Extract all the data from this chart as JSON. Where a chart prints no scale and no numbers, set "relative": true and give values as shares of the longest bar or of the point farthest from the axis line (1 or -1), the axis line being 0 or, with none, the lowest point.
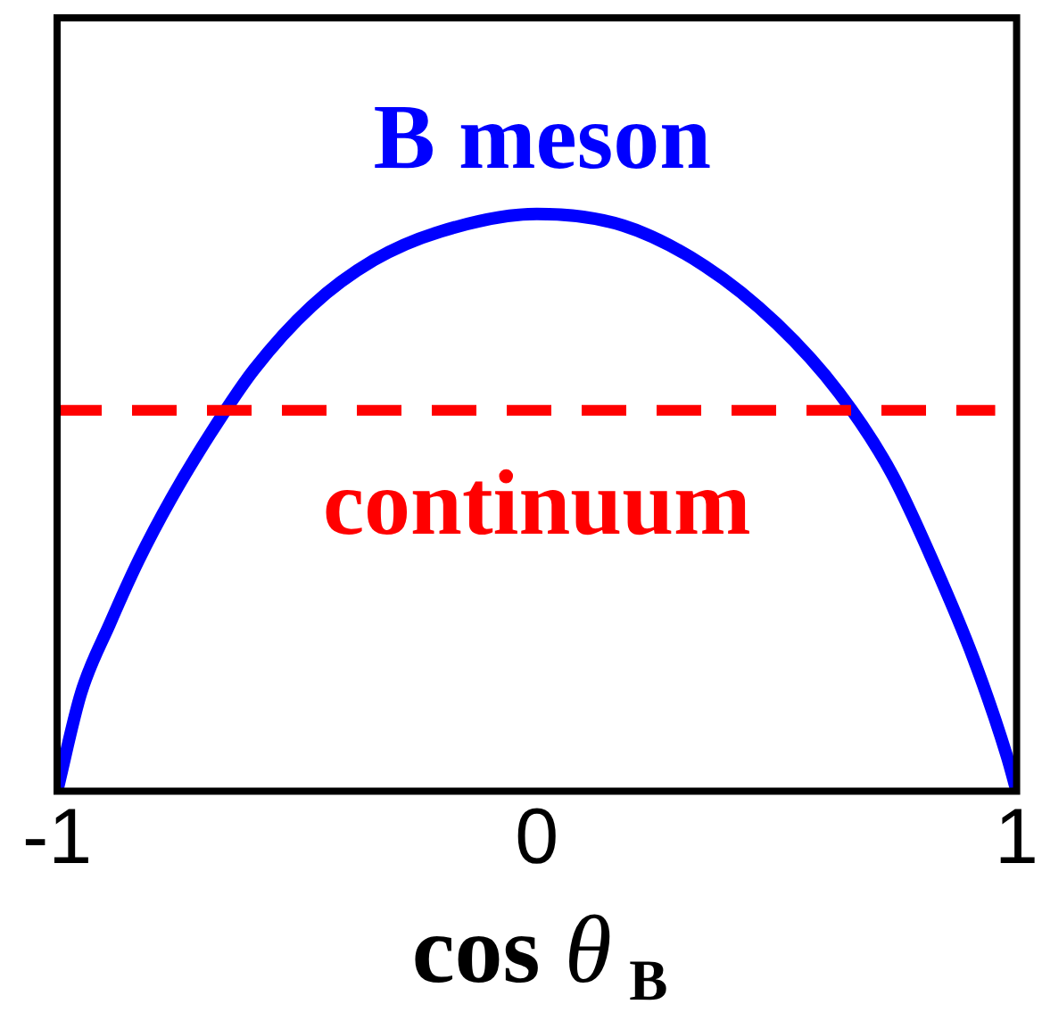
{
  "chart_data": {
    "type": "line",
    "relative": true,
    "marker": "none",
    "line_style": "solid",
    "xlabel": "cos θ$_{B}$",
    "xlim": [
      -1,
      1
    ],
    "xticks": [
      -1,
      0,
      1
    ],
    "x": [
      -1,
      -0.95,
      -0.89,
      -0.83,
      -0.76,
      -0.68,
      -0.59,
      -0.47,
      -0.34,
      -0.2,
      0,
      0.18,
      0.35,
      0.5,
      0.63,
      0.74,
      0.83,
      0.91,
      0.98,
      1
    ],
    "series": [
      {
        "name": "B meson",
        "color": "#0000ff",
        "values": [
          0,
          0.17,
          0.29,
          0.4,
          0.51,
          0.62,
          0.73,
          0.84,
          0.92,
          0.97,
          1,
          0.98,
          0.91,
          0.81,
          0.69,
          0.55,
          0.39,
          0.23,
          0.06,
          0
        ]
      }
    ],
    "ref_lines": [
      {
        "axis": "y",
        "value": 0.66,
        "label": "continuum",
        "color": "#ff0000",
        "line_style": "dashed"
      }
    ]
  }
}
